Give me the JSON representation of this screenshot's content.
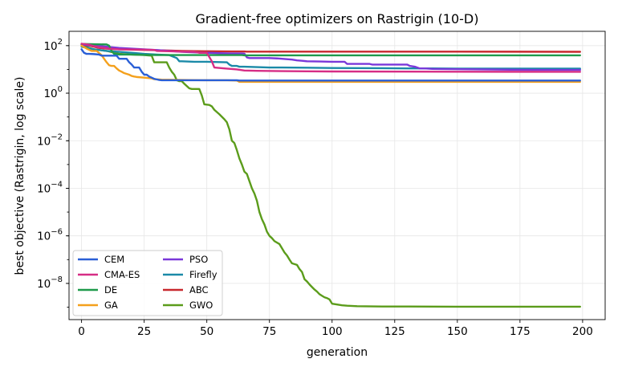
{
  "chart_data": {
    "type": "line",
    "title": "Gradient-free optimizers on Rastrigin (10-D)",
    "xlabel": "generation",
    "ylabel": "best objective (Rastrigin, log scale)",
    "xlim": [
      -5,
      209
    ],
    "ylim": [
      3e-10,
      400
    ],
    "yscale": "log",
    "grid": true,
    "legend_position": "lower-left",
    "legend_columns": 2,
    "x_ticks": [
      0,
      25,
      50,
      75,
      100,
      125,
      150,
      175,
      200
    ],
    "x_tick_labels": [
      "0",
      "25",
      "50",
      "75",
      "100",
      "125",
      "150",
      "175",
      "200"
    ],
    "y_ticks": [
      1e-08,
      1e-06,
      0.0001,
      0.01,
      1,
      100
    ],
    "y_tick_labels": [
      {
        "base": "10",
        "exp": "−8"
      },
      {
        "base": "10",
        "exp": "−6"
      },
      {
        "base": "10",
        "exp": "−4"
      },
      {
        "base": "10",
        "exp": "−2"
      },
      {
        "base": "10",
        "exp": "0"
      },
      {
        "base": "10",
        "exp": "2"
      }
    ],
    "series": [
      {
        "name": "CEM",
        "color": "#2a5fd6",
        "points": [
          [
            0,
            70
          ],
          [
            1,
            50
          ],
          [
            2,
            45
          ],
          [
            3,
            45
          ],
          [
            5,
            44
          ],
          [
            7,
            42
          ],
          [
            8,
            38
          ],
          [
            14,
            38
          ],
          [
            15,
            28
          ],
          [
            18,
            28
          ],
          [
            19,
            20
          ],
          [
            20,
            16
          ],
          [
            21,
            12
          ],
          [
            23,
            12
          ],
          [
            24,
            8
          ],
          [
            25,
            6
          ],
          [
            26,
            6
          ],
          [
            27,
            5
          ],
          [
            28,
            4.5
          ],
          [
            29,
            4
          ],
          [
            30,
            3.8
          ],
          [
            31,
            3.6
          ],
          [
            32,
            3.5
          ],
          [
            40,
            3.5
          ],
          [
            55,
            3.5
          ],
          [
            62,
            3.5
          ],
          [
            63,
            3.4
          ],
          [
            199,
            3.4
          ]
        ]
      },
      {
        "name": "CMA-ES",
        "color": "#d62d85",
        "points": [
          [
            0,
            120
          ],
          [
            3,
            110
          ],
          [
            5,
            95
          ],
          [
            7,
            85
          ],
          [
            9,
            80
          ],
          [
            11,
            75
          ],
          [
            15,
            70
          ],
          [
            25,
            68
          ],
          [
            29,
            66
          ],
          [
            30,
            60
          ],
          [
            35,
            58
          ],
          [
            40,
            56
          ],
          [
            45,
            55
          ],
          [
            47,
            50
          ],
          [
            50,
            50
          ],
          [
            52,
            22
          ],
          [
            53,
            12
          ],
          [
            57,
            11
          ],
          [
            62,
            10
          ],
          [
            65,
            9
          ],
          [
            70,
            8.7
          ],
          [
            80,
            8.5
          ],
          [
            90,
            8.3
          ],
          [
            100,
            8.2
          ],
          [
            150,
            8.0
          ],
          [
            199,
            7.9
          ]
        ]
      },
      {
        "name": "DE",
        "color": "#1f9a4b",
        "points": [
          [
            0,
            118
          ],
          [
            5,
            115
          ],
          [
            10,
            112
          ],
          [
            11,
            100
          ],
          [
            12,
            60
          ],
          [
            13,
            45
          ],
          [
            15,
            42
          ],
          [
            20,
            42
          ],
          [
            25,
            41
          ],
          [
            30,
            40
          ],
          [
            35,
            40
          ],
          [
            40,
            40
          ],
          [
            45,
            40
          ],
          [
            50,
            40
          ],
          [
            55,
            40
          ],
          [
            60,
            40
          ],
          [
            64,
            40
          ],
          [
            65,
            39
          ],
          [
            199,
            39
          ]
        ]
      },
      {
        "name": "GA",
        "color": "#f4a01c",
        "points": [
          [
            0,
            100
          ],
          [
            2,
            75
          ],
          [
            4,
            60
          ],
          [
            6,
            60
          ],
          [
            8,
            40
          ],
          [
            9,
            28
          ],
          [
            10,
            20
          ],
          [
            11,
            15
          ],
          [
            12,
            14
          ],
          [
            13,
            14
          ],
          [
            14,
            11
          ],
          [
            15,
            9
          ],
          [
            16,
            8
          ],
          [
            17,
            7
          ],
          [
            18,
            6.5
          ],
          [
            19,
            6
          ],
          [
            20,
            5.3
          ],
          [
            21,
            5.0
          ],
          [
            22,
            4.8
          ],
          [
            25,
            4.5
          ],
          [
            28,
            4.2
          ],
          [
            29,
            3.9
          ],
          [
            32,
            3.7
          ],
          [
            40,
            3.6
          ],
          [
            50,
            3.5
          ],
          [
            58,
            3.5
          ],
          [
            62,
            3.4
          ],
          [
            63,
            3.0
          ],
          [
            199,
            3.0
          ]
        ]
      },
      {
        "name": "PSO",
        "color": "#7a38d9",
        "points": [
          [
            0,
            110
          ],
          [
            5,
            100
          ],
          [
            10,
            90
          ],
          [
            15,
            80
          ],
          [
            20,
            75
          ],
          [
            25,
            70
          ],
          [
            30,
            65
          ],
          [
            35,
            60
          ],
          [
            40,
            55
          ],
          [
            45,
            52
          ],
          [
            50,
            50
          ],
          [
            55,
            48
          ],
          [
            60,
            47
          ],
          [
            64,
            47
          ],
          [
            65,
            46
          ],
          [
            66,
            32
          ],
          [
            67,
            30
          ],
          [
            70,
            30
          ],
          [
            75,
            30
          ],
          [
            78,
            29
          ],
          [
            80,
            28
          ],
          [
            82,
            27
          ],
          [
            84,
            26
          ],
          [
            86,
            24
          ],
          [
            88,
            23
          ],
          [
            90,
            22
          ],
          [
            95,
            21.5
          ],
          [
            100,
            21
          ],
          [
            105,
            21
          ],
          [
            106,
            17
          ],
          [
            107,
            17
          ],
          [
            115,
            17
          ],
          [
            116,
            16
          ],
          [
            118,
            16
          ],
          [
            130,
            16
          ],
          [
            131,
            14
          ],
          [
            133,
            13
          ],
          [
            134,
            12
          ],
          [
            135,
            11
          ],
          [
            137,
            11
          ],
          [
            140,
            10.5
          ],
          [
            160,
            10
          ],
          [
            180,
            9.5
          ],
          [
            199,
            9.5
          ]
        ]
      },
      {
        "name": "Firefly",
        "color": "#1b8aa8",
        "points": [
          [
            0,
            90
          ],
          [
            5,
            70
          ],
          [
            10,
            60
          ],
          [
            15,
            55
          ],
          [
            20,
            50
          ],
          [
            25,
            45
          ],
          [
            30,
            42
          ],
          [
            35,
            40
          ],
          [
            38,
            30
          ],
          [
            39,
            22
          ],
          [
            40,
            22
          ],
          [
            45,
            21
          ],
          [
            50,
            21
          ],
          [
            58,
            20
          ],
          [
            59,
            16
          ],
          [
            60,
            14
          ],
          [
            61,
            14
          ],
          [
            62,
            14
          ],
          [
            63,
            13
          ],
          [
            65,
            13
          ],
          [
            70,
            12.5
          ],
          [
            75,
            12
          ],
          [
            80,
            12
          ],
          [
            90,
            11.8
          ],
          [
            100,
            11.5
          ],
          [
            110,
            11.3
          ],
          [
            120,
            11.2
          ],
          [
            130,
            11.0
          ],
          [
            140,
            11.0
          ],
          [
            150,
            10.8
          ],
          [
            199,
            10.8
          ]
        ]
      },
      {
        "name": "ABC",
        "color": "#c8282d",
        "points": [
          [
            0,
            110
          ],
          [
            3,
            100
          ],
          [
            5,
            90
          ],
          [
            7,
            80
          ],
          [
            10,
            75
          ],
          [
            12,
            72
          ],
          [
            15,
            70
          ],
          [
            20,
            68
          ],
          [
            25,
            66
          ],
          [
            30,
            64
          ],
          [
            35,
            62
          ],
          [
            40,
            60
          ],
          [
            50,
            58
          ],
          [
            60,
            57
          ],
          [
            65,
            57
          ],
          [
            66,
            56
          ],
          [
            70,
            56
          ],
          [
            80,
            56
          ],
          [
            100,
            56
          ],
          [
            150,
            56
          ],
          [
            199,
            55
          ]
        ]
      },
      {
        "name": "GWO",
        "color": "#5b9c1b",
        "points": [
          [
            0,
            110
          ],
          [
            1,
            100
          ],
          [
            2,
            90
          ],
          [
            3,
            80
          ],
          [
            5,
            70
          ],
          [
            10,
            60
          ],
          [
            15,
            45
          ],
          [
            20,
            42
          ],
          [
            25,
            40
          ],
          [
            28,
            38
          ],
          [
            29,
            20
          ],
          [
            30,
            20
          ],
          [
            32,
            20
          ],
          [
            34,
            20
          ],
          [
            35,
            12
          ],
          [
            36,
            8
          ],
          [
            37,
            6
          ],
          [
            38,
            3.5
          ],
          [
            39,
            3.2
          ],
          [
            40,
            3.2
          ],
          [
            41,
            2.5
          ],
          [
            42,
            2
          ],
          [
            43,
            1.6
          ],
          [
            44,
            1.5
          ],
          [
            47,
            1.5
          ],
          [
            48,
            0.8
          ],
          [
            49,
            0.34
          ],
          [
            50,
            0.33
          ],
          [
            51,
            0.32
          ],
          [
            52,
            0.28
          ],
          [
            53,
            0.2
          ],
          [
            55,
            0.13
          ],
          [
            57,
            0.08
          ],
          [
            58,
            0.06
          ],
          [
            59,
            0.03
          ],
          [
            60,
            0.01
          ],
          [
            61,
            0.008
          ],
          [
            62,
            0.004
          ],
          [
            63,
            0.0018
          ],
          [
            64,
            0.001
          ],
          [
            65,
            0.0005
          ],
          [
            66,
            0.0004
          ],
          [
            67,
            0.0002
          ],
          [
            68,
            0.0001
          ],
          [
            69,
            6e-05
          ],
          [
            70,
            3e-05
          ],
          [
            71,
            1e-05
          ],
          [
            72,
            5e-06
          ],
          [
            73,
            3e-06
          ],
          [
            74,
            1.5e-06
          ],
          [
            75,
            1e-06
          ],
          [
            76,
            8e-07
          ],
          [
            77,
            6e-07
          ],
          [
            79,
            4.5e-07
          ],
          [
            80,
            3e-07
          ],
          [
            81,
            2e-07
          ],
          [
            82,
            1.5e-07
          ],
          [
            83,
            1e-07
          ],
          [
            84,
            7e-08
          ],
          [
            85,
            6.5e-08
          ],
          [
            86,
            6e-08
          ],
          [
            87,
            4e-08
          ],
          [
            88,
            3e-08
          ],
          [
            89,
            1.5e-08
          ],
          [
            90,
            1.2e-08
          ],
          [
            91,
            9e-09
          ],
          [
            92,
            7e-09
          ],
          [
            93,
            5.5e-09
          ],
          [
            94,
            4.5e-09
          ],
          [
            95,
            3.5e-09
          ],
          [
            96,
            3e-09
          ],
          [
            97,
            2.6e-09
          ],
          [
            98,
            2.4e-09
          ],
          [
            99,
            2.1e-09
          ],
          [
            100,
            1.4e-09
          ],
          [
            102,
            1.3e-09
          ],
          [
            104,
            1.2e-09
          ],
          [
            106,
            1.15e-09
          ],
          [
            110,
            1.1e-09
          ],
          [
            120,
            1.07e-09
          ],
          [
            150,
            1.05e-09
          ],
          [
            199,
            1.05e-09
          ]
        ]
      }
    ]
  }
}
